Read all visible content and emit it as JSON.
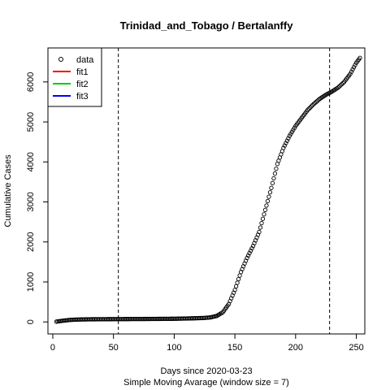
{
  "chart_data": {
    "type": "scatter",
    "title": "Trinidad_and_Tobago / Bertalanffy",
    "xlabel": "Days since 2020-03-23",
    "subtitle": "Simple Moving Avarage (window size = 7)",
    "ylabel": "Cumulative Cases",
    "xlim": [
      -4,
      257
    ],
    "ylim": [
      -300,
      6850
    ],
    "xticks": [
      0,
      50,
      100,
      150,
      200,
      250
    ],
    "yticks": [
      0,
      1000,
      2000,
      3000,
      4000,
      5000,
      6000
    ],
    "vlines": [
      54,
      228
    ],
    "legend": {
      "position": "top-left",
      "items": [
        {
          "label": "data",
          "kind": "point",
          "color": "#000000"
        },
        {
          "label": "fit1",
          "kind": "line",
          "color": "#ff0000"
        },
        {
          "label": "fit2",
          "kind": "line",
          "color": "#00cd00"
        },
        {
          "label": "fit3",
          "kind": "line",
          "color": "#0000ff"
        }
      ]
    },
    "series": [
      {
        "marker": "open-circle",
        "anchors": [
          [
            3,
            8
          ],
          [
            8,
            30
          ],
          [
            14,
            50
          ],
          [
            20,
            60
          ],
          [
            30,
            66
          ],
          [
            50,
            70
          ],
          [
            80,
            75
          ],
          [
            100,
            80
          ],
          [
            115,
            90
          ],
          [
            125,
            100
          ],
          [
            130,
            115
          ],
          [
            135,
            150
          ],
          [
            140,
            240
          ],
          [
            145,
            450
          ],
          [
            150,
            800
          ],
          [
            155,
            1250
          ],
          [
            160,
            1600
          ],
          [
            165,
            1900
          ],
          [
            170,
            2250
          ],
          [
            175,
            2800
          ],
          [
            180,
            3350
          ],
          [
            185,
            3950
          ],
          [
            190,
            4350
          ],
          [
            195,
            4650
          ],
          [
            200,
            4900
          ],
          [
            205,
            5100
          ],
          [
            210,
            5300
          ],
          [
            215,
            5450
          ],
          [
            220,
            5580
          ],
          [
            225,
            5680
          ],
          [
            230,
            5760
          ],
          [
            235,
            5860
          ],
          [
            240,
            6000
          ],
          [
            245,
            6200
          ],
          [
            250,
            6480
          ],
          [
            253,
            6600
          ]
        ]
      }
    ]
  }
}
